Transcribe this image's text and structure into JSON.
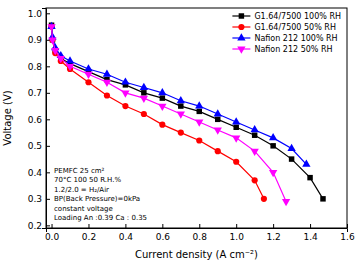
{
  "chart_data": {
    "type": "line",
    "x_label": "Current density (A cm⁻²)",
    "y_label": "Voltage (V)",
    "xlim": [
      -0.03,
      1.6
    ],
    "ylim": [
      0.19,
      1.02
    ],
    "xticks": [
      {
        "value": 0,
        "label": "0.0"
      },
      0.2,
      0.4,
      0.6,
      0.8,
      {
        "value": 1,
        "label": "1.0"
      },
      1.2,
      1.4,
      1.6
    ],
    "yticks": [
      0.2,
      0.3,
      0.4,
      0.5,
      0.6,
      0.7,
      0.8,
      0.9,
      {
        "value": 1,
        "label": "1.0"
      }
    ],
    "grid": false,
    "legend": "upper right",
    "annotations": [
      "PEMFC 25 cm²",
      "70°C 100 50 R.H.%",
      "1.2/2.0 = H₂/Air",
      "BP(Back Pressure)=0kPa",
      "constant voltage",
      "Loading An :0.39 Ca : 0.35"
    ],
    "series": [
      {
        "name": "G1.64/7500 100% RH",
        "color": "#000000",
        "marker": "square",
        "line_style": "solid",
        "x": [
          0,
          0.005,
          0.02,
          0.05,
          0.1,
          0.2,
          0.3,
          0.4,
          0.5,
          0.6,
          0.7,
          0.8,
          0.9,
          1.0,
          1.1,
          1.2,
          1.3,
          1.4,
          1.47
        ],
        "values": [
          0.955,
          0.9,
          0.86,
          0.83,
          0.81,
          0.78,
          0.75,
          0.73,
          0.7,
          0.68,
          0.65,
          0.63,
          0.6,
          0.57,
          0.54,
          0.5,
          0.45,
          0.38,
          0.3
        ]
      },
      {
        "name": "G1.64/7500 50% RH",
        "color": "#ff0000",
        "marker": "circle",
        "line_style": "solid",
        "x": [
          0,
          0.005,
          0.02,
          0.05,
          0.1,
          0.2,
          0.3,
          0.4,
          0.5,
          0.6,
          0.7,
          0.8,
          0.9,
          1.0,
          1.1,
          1.15
        ],
        "values": [
          0.95,
          0.9,
          0.85,
          0.82,
          0.79,
          0.74,
          0.69,
          0.65,
          0.62,
          0.58,
          0.55,
          0.52,
          0.48,
          0.44,
          0.37,
          0.3
        ]
      },
      {
        "name": "Nafion 212 100% RH",
        "color": "#0000ff",
        "marker": "triangle-up",
        "line_style": "solid",
        "x": [
          0,
          0.005,
          0.02,
          0.05,
          0.1,
          0.2,
          0.3,
          0.4,
          0.5,
          0.6,
          0.7,
          0.8,
          0.9,
          1.0,
          1.1,
          1.2,
          1.3,
          1.38
        ],
        "values": [
          0.95,
          0.91,
          0.87,
          0.84,
          0.82,
          0.79,
          0.77,
          0.74,
          0.72,
          0.7,
          0.67,
          0.65,
          0.62,
          0.59,
          0.56,
          0.53,
          0.49,
          0.43
        ]
      },
      {
        "name": "Nafion 212 50% RH",
        "color": "#ff00ff",
        "marker": "triangle-down",
        "line_style": "solid",
        "x": [
          0,
          0.005,
          0.02,
          0.05,
          0.1,
          0.2,
          0.3,
          0.4,
          0.5,
          0.6,
          0.7,
          0.8,
          0.9,
          1.0,
          1.1,
          1.2,
          1.27
        ],
        "values": [
          0.95,
          0.9,
          0.86,
          0.83,
          0.8,
          0.77,
          0.74,
          0.7,
          0.68,
          0.65,
          0.62,
          0.59,
          0.56,
          0.53,
          0.48,
          0.4,
          0.29
        ]
      }
    ]
  }
}
